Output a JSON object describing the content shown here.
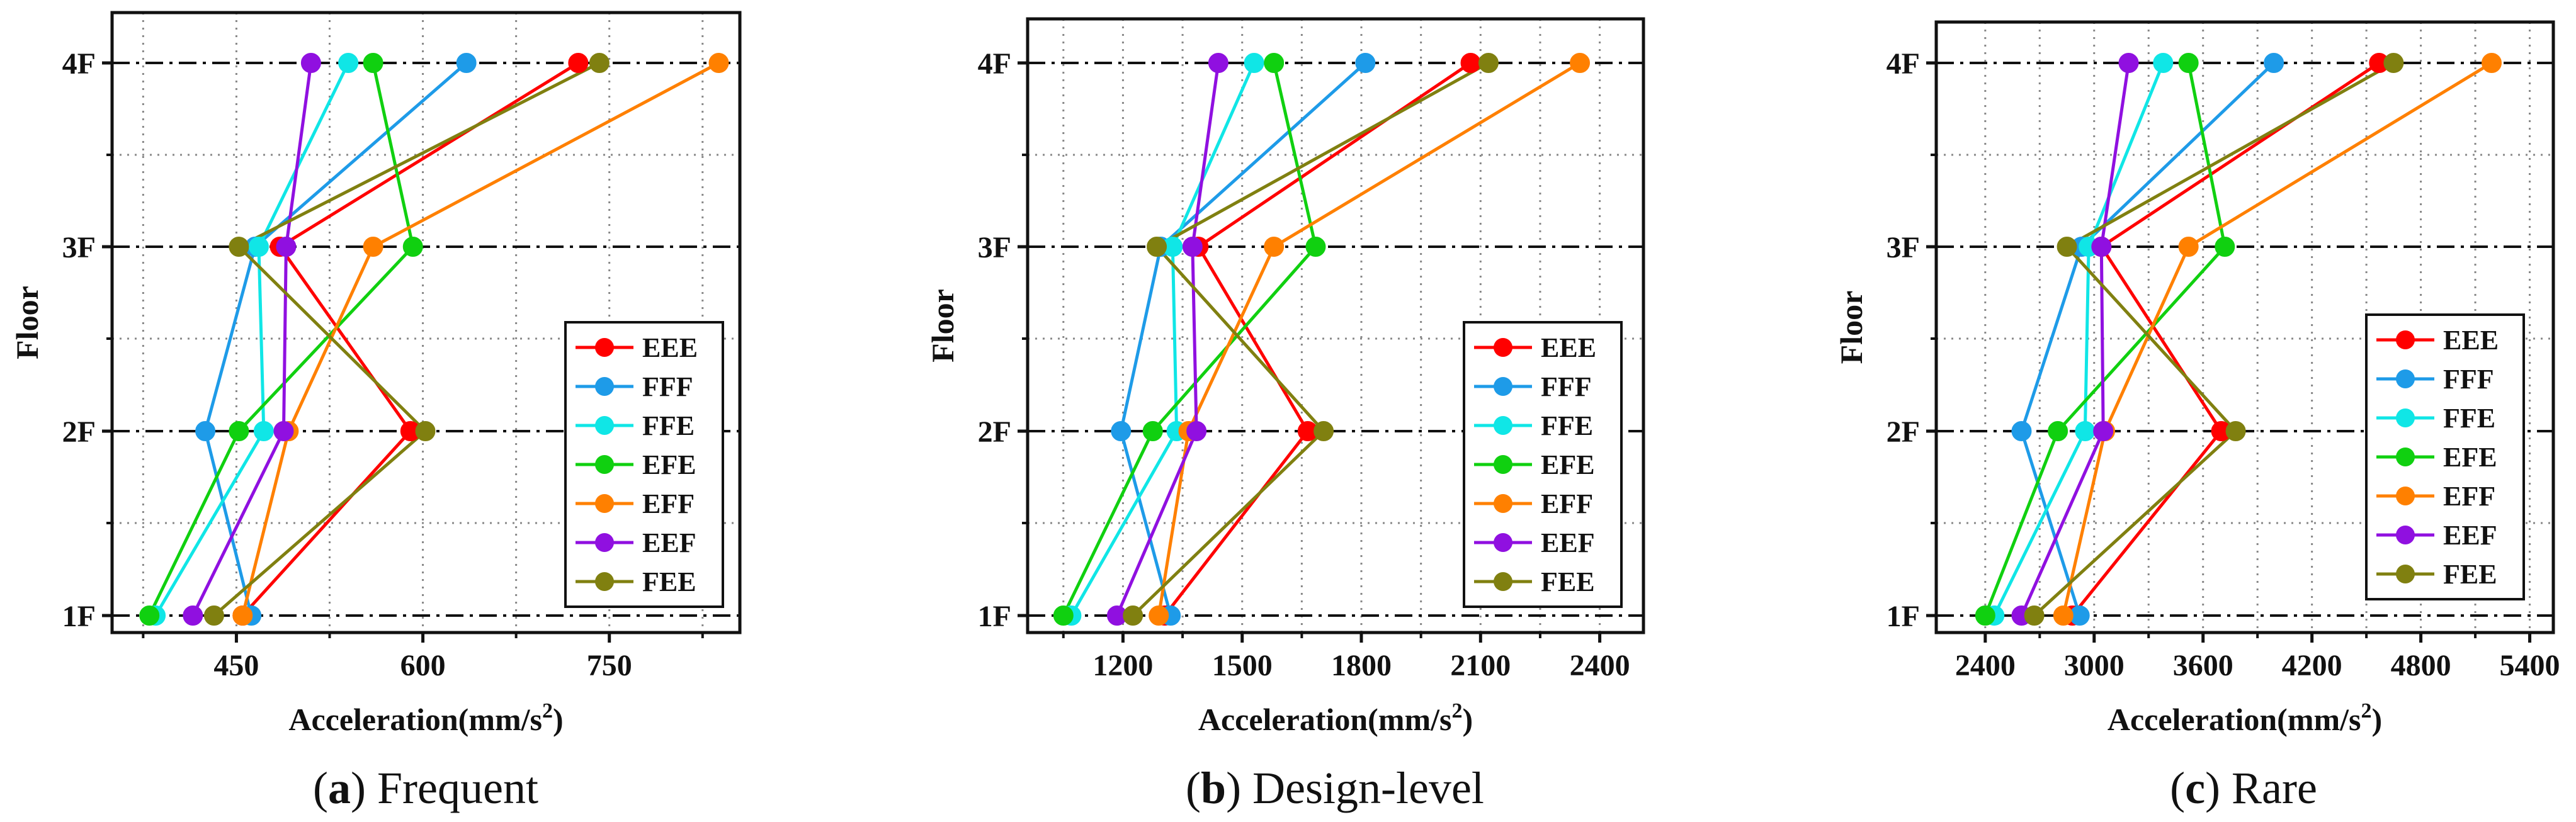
{
  "figure": {
    "ylabel": "Floor",
    "floors": [
      "1F",
      "2F",
      "3F",
      "4F"
    ]
  },
  "chart_data": [
    {
      "type": "line",
      "caption_letter": "a",
      "caption_text": "Frequent",
      "xlabel_main": "Acceleration(mm/s",
      "xlabel_sup": "2",
      "xlabel_end": ")",
      "ylabel": "Floor",
      "xlim": [
        350,
        855
      ],
      "xticks": [
        450,
        600,
        750
      ],
      "xgrid": [
        375,
        450,
        525,
        600,
        675,
        750,
        825
      ],
      "series": [
        {
          "name": "EEE",
          "color": "#ff0000",
          "values": [
            455,
            590,
            485,
            725
          ]
        },
        {
          "name": "FFF",
          "color": "#1e9be8",
          "values": [
            462,
            425,
            465,
            635
          ]
        },
        {
          "name": "FFE",
          "color": "#10e6e6",
          "values": [
            385,
            472,
            468,
            540
          ]
        },
        {
          "name": "EFE",
          "color": "#10d010",
          "values": [
            380,
            452,
            592,
            560
          ]
        },
        {
          "name": "EFF",
          "color": "#ff8000",
          "values": [
            455,
            492,
            560,
            838
          ]
        },
        {
          "name": "EEF",
          "color": "#9010e0",
          "values": [
            415,
            488,
            490,
            510
          ]
        },
        {
          "name": "FEE",
          "color": "#808010",
          "values": [
            432,
            602,
            452,
            742
          ]
        }
      ]
    },
    {
      "type": "line",
      "caption_letter": "b",
      "caption_text": "Design-level",
      "xlabel_main": "Acceleration(mm/s",
      "xlabel_sup": "2",
      "xlabel_end": ")",
      "ylabel": "Floor",
      "xlim": [
        960,
        2510
      ],
      "xticks": [
        1200,
        1500,
        1800,
        2100,
        2400
      ],
      "xgrid": [
        1050,
        1200,
        1350,
        1500,
        1650,
        1800,
        1950,
        2100,
        2250,
        2400
      ],
      "series": [
        {
          "name": "EEE",
          "color": "#ff0000",
          "values": [
            1305,
            1665,
            1390,
            2075
          ]
        },
        {
          "name": "FFF",
          "color": "#1e9be8",
          "values": [
            1320,
            1195,
            1295,
            1810
          ]
        },
        {
          "name": "FFE",
          "color": "#10e6e6",
          "values": [
            1070,
            1335,
            1325,
            1530
          ]
        },
        {
          "name": "EFE",
          "color": "#10d010",
          "values": [
            1050,
            1275,
            1685,
            1580
          ]
        },
        {
          "name": "EFF",
          "color": "#ff8000",
          "values": [
            1290,
            1365,
            1580,
            2350
          ]
        },
        {
          "name": "EEF",
          "color": "#9010e0",
          "values": [
            1185,
            1385,
            1375,
            1440
          ]
        },
        {
          "name": "FEE",
          "color": "#808010",
          "values": [
            1225,
            1705,
            1285,
            2120
          ]
        }
      ]
    },
    {
      "type": "line",
      "caption_letter": "c",
      "caption_text": "Rare",
      "xlabel_main": "Acceleration(mm/s",
      "xlabel_sup": "2",
      "xlabel_end": ")",
      "ylabel": "Floor",
      "xlim": [
        2130,
        5530
      ],
      "xticks": [
        2400,
        3000,
        3600,
        4200,
        4800,
        5400
      ],
      "xgrid": [
        2400,
        2700,
        3000,
        3300,
        3600,
        3900,
        4200,
        4500,
        4800,
        5100,
        5400
      ],
      "series": [
        {
          "name": "EEE",
          "color": "#ff0000",
          "values": [
            2880,
            3700,
            3040,
            4570
          ]
        },
        {
          "name": "FFF",
          "color": "#1e9be8",
          "values": [
            2920,
            2600,
            2930,
            3990
          ]
        },
        {
          "name": "FFE",
          "color": "#10e6e6",
          "values": [
            2450,
            2950,
            2970,
            3380
          ]
        },
        {
          "name": "EFE",
          "color": "#10d010",
          "values": [
            2400,
            2800,
            3720,
            3520
          ]
        },
        {
          "name": "EFF",
          "color": "#ff8000",
          "values": [
            2830,
            3060,
            3520,
            5190
          ]
        },
        {
          "name": "EEF",
          "color": "#9010e0",
          "values": [
            2600,
            3050,
            3040,
            3190
          ]
        },
        {
          "name": "FEE",
          "color": "#808010",
          "values": [
            2670,
            3780,
            2850,
            4650
          ]
        }
      ]
    }
  ]
}
